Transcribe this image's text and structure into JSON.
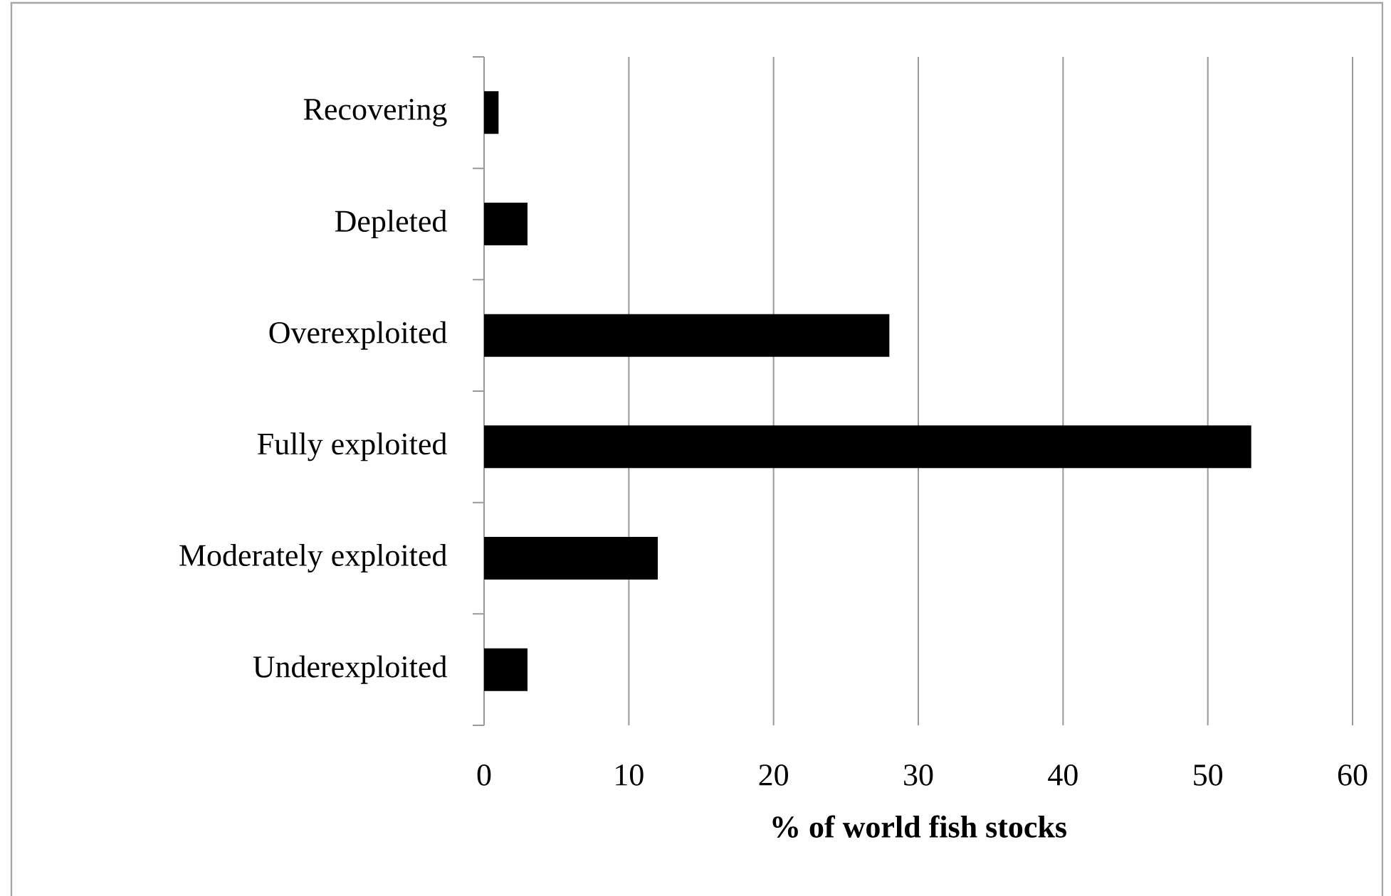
{
  "chart_data": {
    "type": "bar",
    "orientation": "horizontal",
    "xlabel": "% of world fish stocks",
    "categories": [
      "Recovering",
      "Depleted",
      "Overexploited",
      "Fully exploited",
      "Moderately exploited",
      "Underexploited"
    ],
    "values": [
      1,
      3,
      28,
      53,
      12,
      3
    ],
    "color": "#000000",
    "xlim": [
      0,
      60
    ],
    "xticks": [
      0,
      10,
      20,
      30,
      40,
      50,
      60
    ],
    "grid": "x"
  }
}
